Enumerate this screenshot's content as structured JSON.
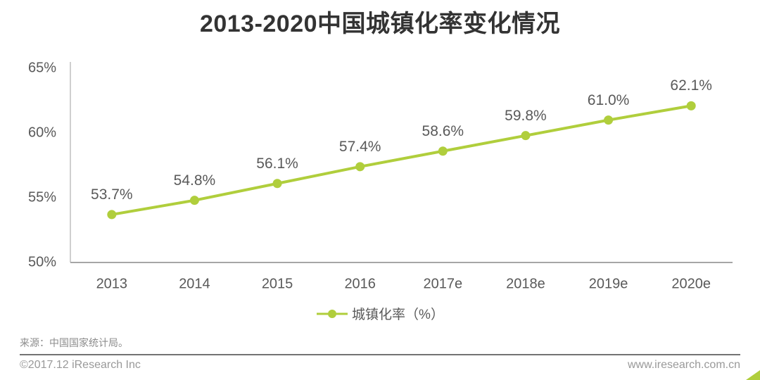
{
  "title": "2013-2020中国城镇化率变化情况",
  "chart_data": {
    "type": "line",
    "title": "2013-2020中国城镇化率变化情况",
    "categories": [
      "2013",
      "2014",
      "2015",
      "2016",
      "2017e",
      "2018e",
      "2019e",
      "2020e"
    ],
    "series": [
      {
        "name": "城镇化率（%）",
        "values": [
          53.7,
          54.8,
          56.1,
          57.4,
          58.6,
          59.8,
          61.0,
          62.1
        ]
      }
    ],
    "value_labels": [
      "53.7%",
      "54.8%",
      "56.1%",
      "57.4%",
      "58.6%",
      "59.8%",
      "61.0%",
      "62.1%"
    ],
    "y_ticks": [
      "50%",
      "55%",
      "60%",
      "65%"
    ],
    "y_tick_values": [
      50,
      55,
      60,
      65
    ],
    "ylim": [
      50,
      65
    ],
    "xlabel": "",
    "ylabel": "",
    "grid": false,
    "legend": "城镇化率（%）",
    "legend_position": "bottom",
    "line_color": "#B0CE3C",
    "axis_color": "#BFBFBF",
    "label_color": "#595959"
  },
  "footer": {
    "source": "来源：中国国家统计局。",
    "copyright": "©2017.12 iResearch Inc",
    "website": "www.iresearch.com.cn"
  }
}
